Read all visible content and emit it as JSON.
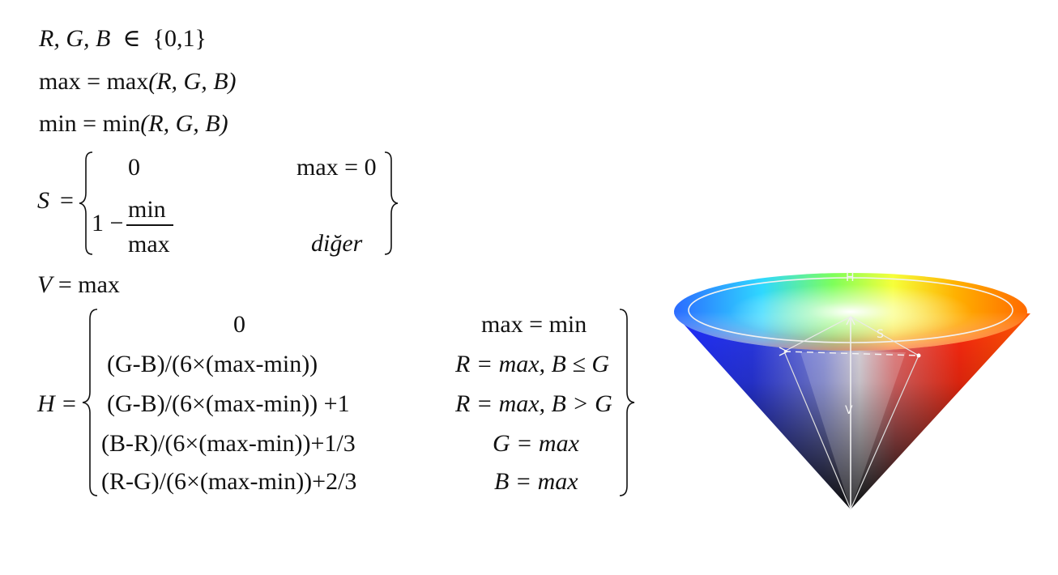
{
  "line1": {
    "vars": "R, G, B",
    "op": "∈",
    "set": "{0,1}"
  },
  "line2": {
    "lhs": "max",
    "rhs_func": "max",
    "args": "(R, G, B)"
  },
  "line3": {
    "lhs": "min",
    "rhs_func": "min",
    "args": "(R, G, B)"
  },
  "s_block": {
    "var": "S",
    "case1_value": "0",
    "case1_cond": "max = 0",
    "case2_prefix": "1 −",
    "case2_num": "min",
    "case2_den": "max",
    "case2_cond": "diğer"
  },
  "v_line": {
    "var": "V",
    "rhs": "max"
  },
  "h_block": {
    "var": "H",
    "cases": [
      {
        "value": "0",
        "cond": "max = min"
      },
      {
        "value": "(G-B)/(6×(max-min))",
        "cond": "R = max,  B ≤ G"
      },
      {
        "value": "(G-B)/(6×(max-min)) +1",
        "cond": "R = max,  B > G"
      },
      {
        "value": "(B-R)/(6×(max-min))+1/3",
        "cond": "G = max"
      },
      {
        "value": "(R-G)/(6×(max-min))+2/3",
        "cond": "B = max"
      }
    ]
  },
  "cone": {
    "h_label": "H",
    "s_label": "S",
    "v_label": "V"
  }
}
